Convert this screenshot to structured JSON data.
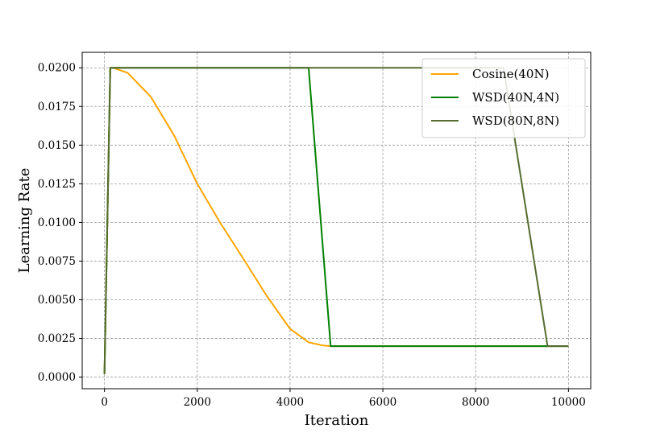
{
  "chart_data": {
    "type": "line",
    "xlabel": "Iteration",
    "ylabel": "Learning Rate",
    "xlim": [
      -480,
      10480
    ],
    "ylim": [
      -0.00075,
      0.021
    ],
    "x_ticks": [
      0,
      2000,
      4000,
      6000,
      8000,
      10000
    ],
    "x_tick_labels": [
      "0",
      "2000",
      "4000",
      "6000",
      "8000",
      "10000"
    ],
    "y_ticks": [
      0.0,
      0.0025,
      0.005,
      0.0075,
      0.01,
      0.0125,
      0.015,
      0.0175,
      0.02
    ],
    "y_tick_labels": [
      "0.0000",
      "0.0025",
      "0.0050",
      "0.0075",
      "0.0100",
      "0.0125",
      "0.0150",
      "0.0175",
      "0.0200"
    ],
    "grid": true,
    "legend_position": "top-right",
    "series": [
      {
        "name": "Cosine(40N)",
        "color": "#ffa500",
        "x": [
          0,
          125,
          200,
          500,
          1000,
          1500,
          2000,
          2500,
          3000,
          3500,
          4000,
          4400,
          4700,
          4875,
          10000
        ],
        "y": [
          0.0002,
          0.02,
          0.01999,
          0.01967,
          0.01812,
          0.01563,
          0.0125,
          0.00995,
          0.00762,
          0.00524,
          0.00312,
          0.00225,
          0.00205,
          0.002,
          0.002
        ]
      },
      {
        "name": "WSD(40N,4N)",
        "color": "#008000",
        "x": [
          0,
          125,
          4400,
          4875,
          10000
        ],
        "y": [
          0.0002,
          0.02,
          0.02,
          0.002,
          0.002
        ]
      },
      {
        "name": "WSD(80N,8N)",
        "color": "#556b2f",
        "x": [
          0,
          125,
          8600,
          9550,
          10000
        ],
        "y": [
          0.0002,
          0.02,
          0.02,
          0.002,
          0.002
        ]
      }
    ]
  }
}
